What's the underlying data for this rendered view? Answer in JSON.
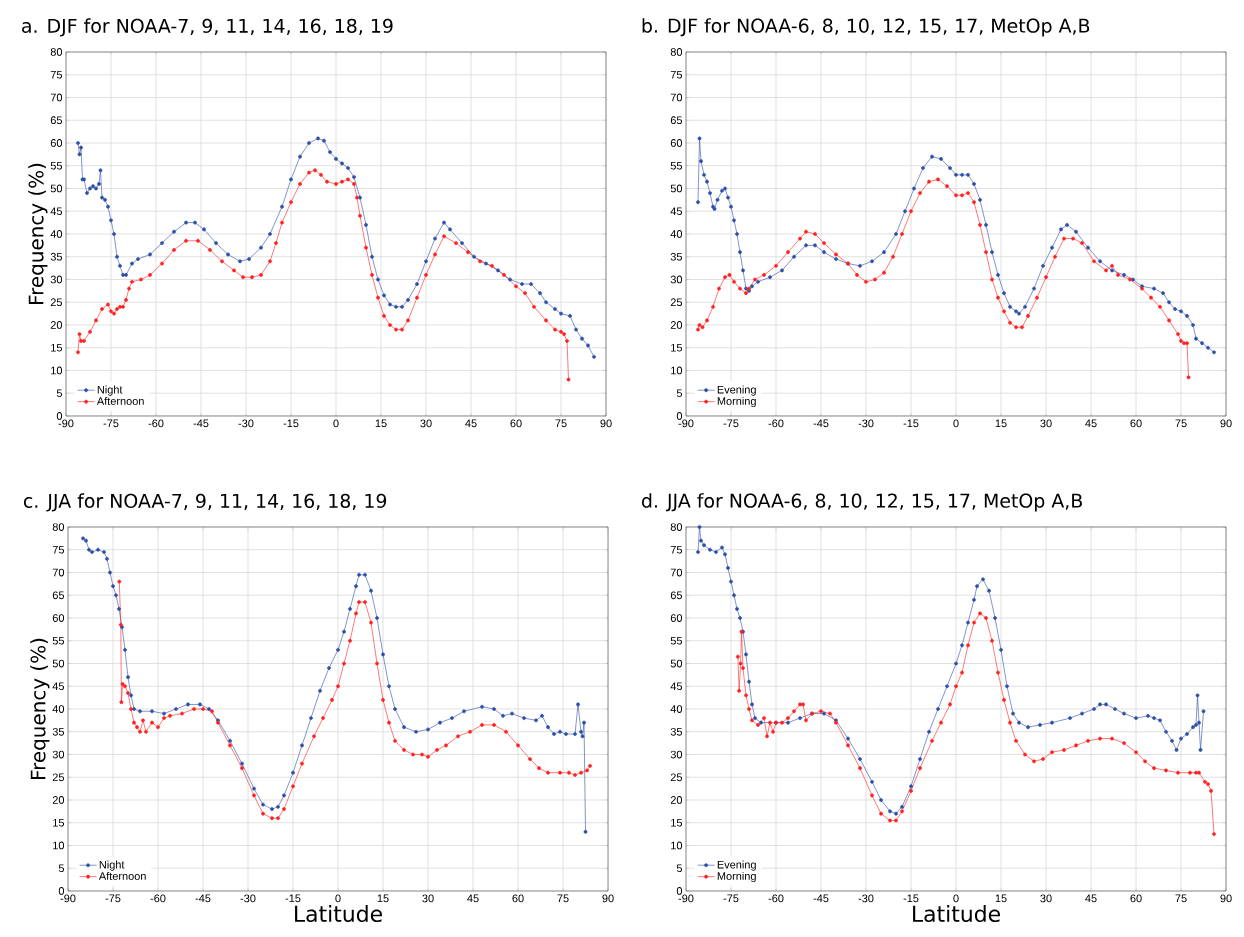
{
  "chart_data": [
    {
      "type": "line",
      "title": "a. DJF for NOAA-7, 9, 11, 14, 16, 18, 19",
      "ylabel": "Frequency (%)",
      "xlim": [
        -90,
        90
      ],
      "ylim": [
        0,
        80
      ],
      "xticks": [
        -90,
        -75,
        -60,
        -45,
        -30,
        -15,
        0,
        15,
        30,
        45,
        60,
        75,
        90
      ],
      "yticks": [
        0,
        5,
        10,
        15,
        20,
        25,
        30,
        35,
        40,
        45,
        50,
        55,
        60,
        65,
        70,
        75,
        80
      ],
      "grid": true,
      "legend": "bottom left",
      "marker": "circle",
      "series": [
        {
          "name": "Night",
          "color": "#2e4fa8",
          "x": [
            -86,
            -85.5,
            -85,
            -84.5,
            -84,
            -83,
            -82,
            -81,
            -80,
            -79,
            -78.5,
            -78,
            -77,
            -76,
            -75,
            -74,
            -73,
            -72,
            -71,
            -70,
            -68,
            -66,
            -62,
            -58,
            -54,
            -50,
            -47,
            -44,
            -40,
            -36,
            -32,
            -29,
            -25,
            -22,
            -18,
            -15,
            -12,
            -9,
            -6,
            -4,
            -2,
            0,
            2,
            4,
            6,
            8,
            10,
            12,
            14,
            16,
            18,
            20,
            22,
            24,
            27,
            30,
            33,
            36,
            38,
            42,
            46,
            50,
            54,
            58,
            62,
            65,
            68,
            70,
            73,
            75,
            78,
            80,
            82,
            84,
            86
          ],
          "values": [
            60,
            57.5,
            59,
            52,
            52,
            49,
            50,
            50.5,
            50,
            51,
            54,
            48,
            47.5,
            46,
            43,
            40,
            35,
            33,
            31,
            31,
            33.5,
            34.5,
            35.5,
            38,
            40.5,
            42.5,
            42.5,
            41,
            38,
            35.5,
            34,
            34.5,
            37,
            40,
            46,
            52,
            57,
            60,
            61,
            60.5,
            58,
            56.5,
            55.5,
            54.5,
            52.5,
            48,
            42,
            35,
            30,
            26.5,
            24.5,
            24,
            24,
            25.5,
            29,
            34,
            39,
            42.5,
            41,
            38,
            35,
            33.5,
            32,
            30,
            29,
            29,
            27,
            25,
            23.5,
            22.5,
            22,
            19,
            17,
            15.5,
            13
          ]
        },
        {
          "name": "Afternoon",
          "color": "#ff2020",
          "x": [
            -86,
            -85.5,
            -85,
            -84,
            -82,
            -80,
            -78,
            -76,
            -75,
            -74,
            -73,
            -72,
            -71,
            -70,
            -69,
            -68,
            -65,
            -62,
            -58,
            -54,
            -50,
            -46,
            -42,
            -38,
            -34,
            -31,
            -28,
            -25,
            -22,
            -20,
            -18,
            -15,
            -12,
            -9,
            -7,
            -5,
            -3,
            0,
            2,
            4,
            6,
            7,
            8,
            10,
            12,
            14,
            16,
            18,
            20,
            22,
            24,
            27,
            30,
            33,
            36,
            40,
            44,
            48,
            52,
            56,
            60,
            63,
            66,
            70,
            73,
            75,
            76,
            77,
            77.5
          ],
          "values": [
            14,
            18,
            16.5,
            16.5,
            18.5,
            21,
            23.5,
            24.5,
            23,
            22.5,
            23.5,
            24,
            24,
            25.5,
            28,
            29.5,
            30,
            31,
            33.5,
            36.5,
            38.5,
            38.5,
            36.5,
            34,
            32,
            30.5,
            30.5,
            31,
            34,
            38,
            42.5,
            47,
            51,
            53.5,
            54,
            53,
            51.5,
            51,
            51.5,
            52,
            51,
            48,
            44,
            37,
            31,
            26,
            22,
            20,
            19,
            19,
            21,
            26,
            31,
            35.5,
            39.5,
            38,
            36,
            34,
            33,
            31,
            28.5,
            27,
            24,
            21,
            19,
            18.5,
            18,
            16.5,
            8
          ]
        }
      ]
    },
    {
      "type": "line",
      "title": "b. DJF for NOAA-6, 8, 10, 12, 15, 17, MetOp A,B",
      "xlim": [
        -90,
        90
      ],
      "ylim": [
        0,
        80
      ],
      "xticks": [
        -90,
        -75,
        -60,
        -45,
        -30,
        -15,
        0,
        15,
        30,
        45,
        60,
        75,
        90
      ],
      "yticks": [
        0,
        5,
        10,
        15,
        20,
        25,
        30,
        35,
        40,
        45,
        50,
        55,
        60,
        65,
        70,
        75,
        80
      ],
      "grid": true,
      "legend": "bottom left",
      "marker": "circle",
      "series": [
        {
          "name": "Evening",
          "color": "#2e4fa8",
          "x": [
            -86,
            -85.5,
            -85,
            -84,
            -83,
            -82,
            -81,
            -80.5,
            -79.5,
            -78,
            -77,
            -76,
            -75,
            -74,
            -73,
            -72,
            -71,
            -70,
            -69,
            -68,
            -66,
            -62,
            -58,
            -54,
            -50,
            -47,
            -44,
            -40,
            -36,
            -32,
            -28,
            -24,
            -20,
            -17,
            -14,
            -11,
            -8,
            -5,
            -2,
            0,
            2,
            4,
            6,
            8,
            10,
            12,
            14,
            16,
            18,
            20,
            21,
            23,
            26,
            29,
            32,
            35,
            37,
            40,
            44,
            48,
            52,
            56,
            59,
            62,
            66,
            69,
            71,
            73,
            75,
            77,
            79,
            80,
            82,
            84,
            86
          ],
          "values": [
            47,
            61,
            56,
            53,
            51.5,
            49,
            46,
            45.5,
            47.5,
            49.5,
            50,
            48,
            46,
            43,
            40,
            36,
            32,
            28,
            27.5,
            28.5,
            29.5,
            30.5,
            32,
            35,
            37.5,
            37.5,
            36,
            34.5,
            33.5,
            33,
            34,
            36,
            40,
            45,
            50,
            54.5,
            57,
            56.5,
            54.5,
            53,
            53,
            53,
            51,
            47.5,
            42,
            36,
            31,
            27,
            24,
            23,
            22.5,
            24,
            28,
            33,
            37,
            41,
            42,
            40.5,
            37,
            34,
            32,
            31,
            30,
            28.5,
            28,
            27,
            25,
            23.5,
            23,
            22,
            20,
            17,
            16,
            15,
            14
          ]
        },
        {
          "name": "Morning",
          "color": "#ff2020",
          "x": [
            -86,
            -85.5,
            -84.5,
            -83,
            -81,
            -79,
            -77,
            -75.5,
            -74,
            -72,
            -70,
            -69,
            -67,
            -64,
            -60,
            -56,
            -52,
            -50,
            -47,
            -44,
            -40,
            -36,
            -33,
            -30,
            -27,
            -24,
            -21,
            -18,
            -15,
            -12,
            -9,
            -6,
            -3,
            0,
            2,
            4,
            6,
            8,
            10,
            12,
            14,
            16,
            18,
            20,
            22,
            24,
            27,
            30,
            33,
            36,
            39,
            42,
            46,
            50,
            52,
            54,
            58,
            62,
            65,
            68,
            71,
            74,
            75,
            76,
            77,
            77.5
          ],
          "values": [
            19,
            20,
            19.5,
            21,
            24,
            28,
            30.5,
            31,
            29.5,
            28,
            27,
            28,
            30,
            31,
            33,
            36,
            39,
            40.5,
            40,
            38,
            35.5,
            33.5,
            31,
            29.5,
            30,
            31.5,
            35,
            40,
            45,
            49,
            51.5,
            52,
            50.5,
            48.5,
            48.5,
            49,
            47,
            42,
            36,
            30,
            26,
            23,
            20.5,
            19.5,
            19.5,
            22,
            26,
            30.5,
            35,
            39,
            39,
            38,
            34,
            32,
            33,
            31,
            30,
            28,
            26,
            24,
            21,
            18,
            16.5,
            16,
            16,
            8.5
          ]
        }
      ]
    },
    {
      "type": "line",
      "title": "c. JJA for NOAA-7, 9, 11, 14, 16, 18, 19",
      "xlabel": "Latitude",
      "ylabel": "Frequency (%)",
      "xlim": [
        -90,
        90
      ],
      "ylim": [
        0,
        80
      ],
      "xticks": [
        -90,
        -75,
        -60,
        -45,
        -30,
        -15,
        0,
        15,
        30,
        45,
        60,
        75,
        90
      ],
      "yticks": [
        0,
        5,
        10,
        15,
        20,
        25,
        30,
        35,
        40,
        45,
        50,
        55,
        60,
        65,
        70,
        75,
        80
      ],
      "grid": true,
      "legend": "bottom left",
      "marker": "circle",
      "series": [
        {
          "name": "Night",
          "color": "#2e4fa8",
          "x": [
            -85,
            -84,
            -83,
            -82,
            -80,
            -78,
            -77,
            -76,
            -75,
            -74,
            -73,
            -72,
            -71,
            -70,
            -69,
            -68,
            -66,
            -62,
            -58,
            -54,
            -50,
            -46,
            -43,
            -40,
            -36,
            -32,
            -28,
            -25,
            -22,
            -20,
            -18,
            -15,
            -12,
            -9,
            -6,
            -3,
            0,
            2,
            4,
            6,
            7,
            9,
            11,
            13,
            15,
            17,
            19,
            22,
            26,
            30,
            34,
            38,
            42,
            48,
            52,
            55,
            58,
            62,
            66,
            68,
            70,
            72,
            74,
            76,
            79,
            80,
            81,
            81.5,
            82,
            82.5
          ],
          "values": [
            77.5,
            77,
            75,
            74.5,
            75,
            74.5,
            73,
            70,
            67,
            65,
            62,
            58,
            53,
            47,
            43,
            40,
            39.5,
            39.5,
            39,
            40,
            41,
            41,
            40,
            37.5,
            33,
            28,
            22.5,
            19,
            18,
            18.5,
            21,
            26,
            32,
            38,
            44,
            49,
            53,
            57,
            62,
            67,
            69.5,
            69.5,
            66,
            60,
            52,
            45,
            40,
            36,
            35,
            35.5,
            37,
            38,
            39.5,
            40.5,
            40,
            38.5,
            39,
            38,
            37.5,
            38.5,
            36,
            34.5,
            35,
            34.5,
            34.5,
            41,
            35,
            34,
            37,
            13
          ]
        },
        {
          "name": "Afternoon",
          "color": "#ff2020",
          "x": [
            -72.9,
            -72.4,
            -72.2,
            -71.8,
            -71,
            -70,
            -69,
            -68,
            -67,
            -66,
            -65,
            -64,
            -62,
            -60,
            -58,
            -56,
            -52,
            -48,
            -45,
            -42,
            -40,
            -36,
            -32,
            -28,
            -25,
            -22,
            -20,
            -18,
            -15,
            -12,
            -8,
            -5,
            -2,
            0,
            2,
            4,
            6,
            7,
            9,
            11,
            13,
            15,
            17,
            19,
            22,
            25,
            28,
            30,
            33,
            36,
            40,
            44,
            48,
            52,
            56,
            60,
            64,
            67,
            70,
            74,
            77,
            79,
            81,
            83,
            84
          ],
          "values": [
            68,
            58.5,
            41.5,
            45.5,
            45,
            43.5,
            40,
            37,
            36,
            35,
            37.5,
            35,
            37,
            36,
            38,
            38.5,
            39,
            40,
            40,
            39.5,
            37,
            32,
            27,
            21,
            17,
            16,
            16,
            18,
            23,
            28,
            34,
            38,
            42,
            45,
            50,
            55,
            61,
            63.5,
            63.5,
            59,
            50,
            42,
            37,
            33,
            31,
            30,
            30,
            29.5,
            31,
            32,
            34,
            35,
            36.5,
            36.5,
            35,
            32,
            29,
            27,
            26,
            26,
            26,
            25.5,
            26,
            26.5,
            27.5
          ]
        }
      ]
    },
    {
      "type": "line",
      "title": "d. JJA for NOAA-6, 8, 10, 12, 15, 17, MetOp A,B",
      "xlabel": "Latitude",
      "xlim": [
        -90,
        90
      ],
      "ylim": [
        0,
        80
      ],
      "xticks": [
        -90,
        -75,
        -60,
        -45,
        -30,
        -15,
        0,
        15,
        30,
        45,
        60,
        75,
        90
      ],
      "yticks": [
        0,
        5,
        10,
        15,
        20,
        25,
        30,
        35,
        40,
        45,
        50,
        55,
        60,
        65,
        70,
        75,
        80
      ],
      "grid": true,
      "legend": "bottom left",
      "marker": "circle",
      "series": [
        {
          "name": "Evening",
          "color": "#2e4fa8",
          "x": [
            -86,
            -85.5,
            -85,
            -84,
            -82,
            -80,
            -78,
            -77,
            -76,
            -75,
            -74,
            -73,
            -72,
            -71,
            -70,
            -69,
            -68,
            -67,
            -65,
            -60,
            -56,
            -52,
            -48,
            -44,
            -40,
            -36,
            -32,
            -28,
            -25,
            -22,
            -20,
            -18,
            -15,
            -12,
            -9,
            -6,
            -3,
            0,
            2,
            4,
            6,
            7,
            9,
            11,
            13,
            15,
            17,
            19,
            21,
            24,
            28,
            32,
            38,
            42,
            46,
            48,
            50,
            53,
            56,
            60,
            64,
            66,
            68,
            70,
            72,
            73.5,
            75,
            77,
            79,
            80,
            80.5,
            81,
            81.5,
            82.5
          ],
          "values": [
            74.5,
            80,
            77,
            76,
            75,
            74.5,
            75.5,
            74,
            71,
            68,
            65,
            62,
            60,
            57,
            52,
            46,
            41,
            38,
            37,
            37,
            37,
            38,
            39,
            39,
            37.5,
            33.5,
            29,
            24,
            20,
            17.5,
            17,
            18.5,
            23,
            29,
            35,
            40,
            45,
            50,
            54,
            59,
            64,
            67,
            68.5,
            66,
            60,
            53,
            45,
            39,
            37,
            36,
            36.5,
            37,
            38,
            39,
            40,
            41,
            41,
            40,
            39,
            38,
            38.5,
            38,
            37.5,
            35,
            33,
            31,
            33.5,
            34.5,
            36,
            36.5,
            43,
            37,
            31,
            39.5
          ]
        },
        {
          "name": "Morning",
          "color": "#ff2020",
          "x": [
            -72.7,
            -72.3,
            -71.8,
            -71.5,
            -71,
            -70,
            -69,
            -68,
            -66,
            -64,
            -63,
            -62,
            -61,
            -60,
            -58,
            -56,
            -54,
            -52,
            -51,
            -50,
            -48,
            -45,
            -42,
            -40,
            -36,
            -32,
            -28,
            -25,
            -22,
            -20,
            -18,
            -15,
            -12,
            -8,
            -5,
            -2,
            0,
            2,
            4,
            6,
            8,
            10,
            12,
            14,
            16,
            18,
            20,
            23,
            26,
            29,
            32,
            36,
            40,
            44,
            48,
            52,
            56,
            60,
            63,
            66,
            70,
            74,
            78,
            80,
            81,
            83,
            84,
            85,
            86
          ],
          "values": [
            51.5,
            44,
            50,
            57,
            49,
            43,
            40,
            37.5,
            36.5,
            38,
            34,
            37,
            35,
            37,
            37,
            38,
            39.5,
            41,
            41,
            37.5,
            39,
            39.5,
            39,
            37,
            32,
            27,
            21,
            17,
            15.5,
            15.5,
            17.5,
            22,
            27,
            33,
            37,
            41,
            45,
            48,
            54,
            59,
            61,
            60,
            55,
            48,
            42,
            37,
            33,
            30,
            28.5,
            29,
            30.5,
            31,
            32,
            33,
            33.5,
            33.5,
            32.5,
            30.5,
            28.5,
            27,
            26.5,
            26,
            26,
            26,
            26,
            24,
            23.5,
            22,
            12.5
          ]
        }
      ]
    }
  ]
}
